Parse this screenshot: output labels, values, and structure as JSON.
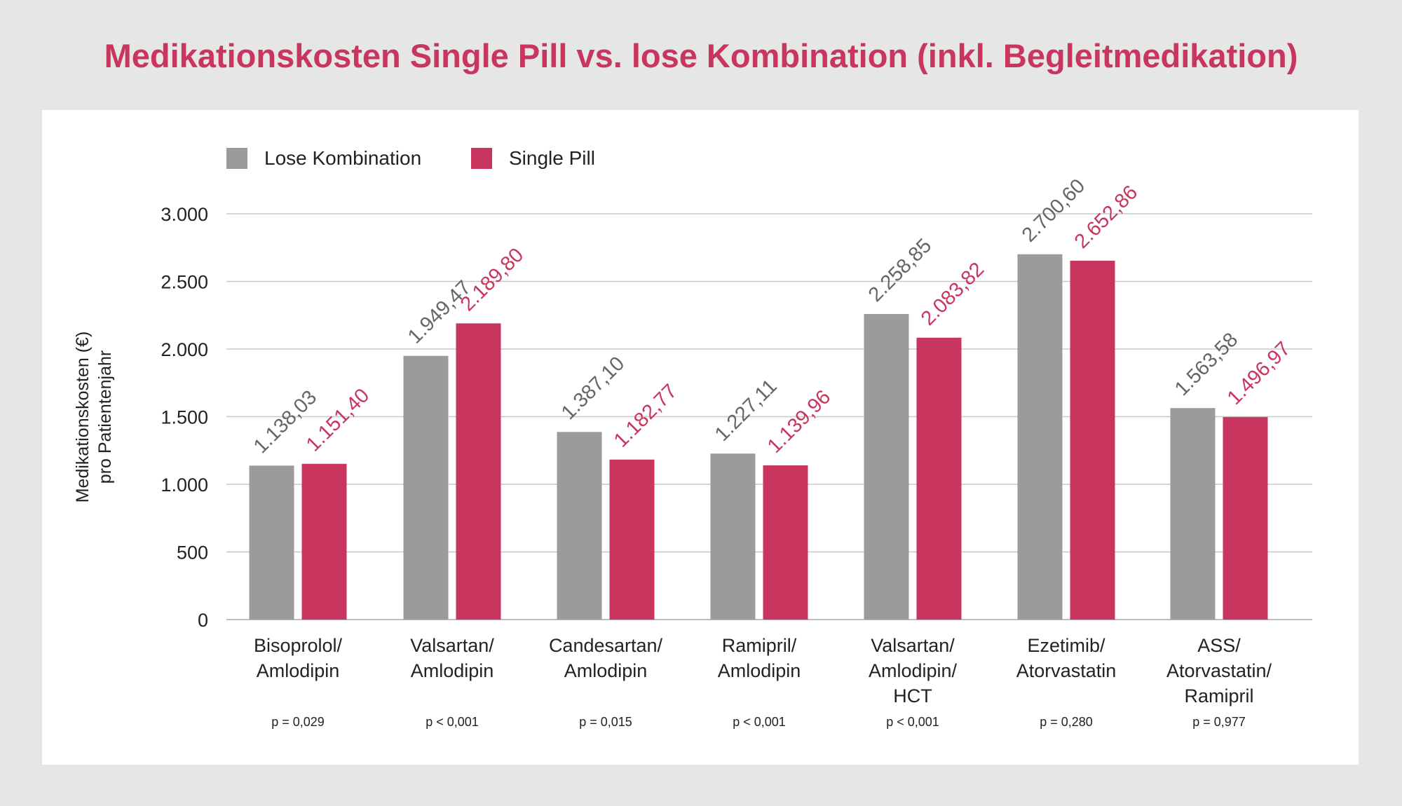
{
  "title": "Medikationskosten Single Pill vs. lose Kombination (inkl. Begleitmedikation)",
  "chart_data": {
    "type": "bar",
    "title": "Medikationskosten Single Pill vs. lose Kombination (inkl. Begleitmedikation)",
    "ylabel": [
      "Medikationskosten (€)",
      "pro Patientenjahr"
    ],
    "xlabel": "",
    "ylim": [
      0,
      3000
    ],
    "yticks": [
      0,
      500,
      1000,
      1500,
      2000,
      2500,
      3000
    ],
    "ytick_labels": [
      "0",
      "500",
      "1.000",
      "1.500",
      "2.000",
      "2.500",
      "3.000"
    ],
    "legend_position": "top-left",
    "categories": [
      [
        "Bisoprolol/",
        "Amlodipin"
      ],
      [
        "Valsartan/",
        "Amlodipin"
      ],
      [
        "Candesartan/",
        "Amlodipin"
      ],
      [
        "Ramipril/",
        "Amlodipin"
      ],
      [
        "Valsartan/",
        "Amlodipin/",
        "HCT"
      ],
      [
        "Ezetimib/",
        "Atorvastatin"
      ],
      [
        "ASS/",
        "Atorvastatin/",
        "Ramipril"
      ]
    ],
    "p_values": [
      "p = 0,029",
      "p < 0,001",
      "p = 0,015",
      "p < 0,001",
      "p < 0,001",
      "p = 0,280",
      "p = 0,977"
    ],
    "series": [
      {
        "name": "Lose Kombination",
        "color": "#9b9b9b",
        "label_color": "#666666",
        "values": [
          1138.03,
          1949.47,
          1387.1,
          1227.11,
          2258.85,
          2700.6,
          1563.58
        ],
        "labels": [
          "1.138,03",
          "1.949,47",
          "1.387,10",
          "1.227,11",
          "2.258,85",
          "2.700,60",
          "1.563,58"
        ]
      },
      {
        "name": "Single Pill",
        "color": "#c8365f",
        "label_color": "#c8365f",
        "values": [
          1151.4,
          2189.8,
          1182.77,
          1139.96,
          2083.82,
          2652.86,
          1496.97
        ],
        "labels": [
          "1.151,40",
          "2.189,80",
          "1.182,77",
          "1.139,96",
          "2.083,82",
          "2.652,86",
          "1.496,97"
        ]
      }
    ]
  }
}
